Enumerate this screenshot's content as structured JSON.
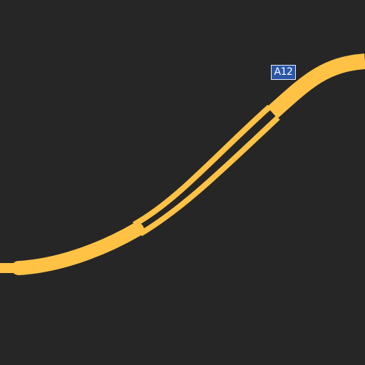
{
  "map": {
    "background_color": "#262626",
    "road_color": "#ffc245",
    "road_class": "motorway",
    "road_shield": {
      "label": "A12",
      "fill_color": "#2a56a8",
      "border_color": "#e6ecf5",
      "text_color": "#ffffff"
    },
    "features": [
      "motorway-main-carriageway",
      "dual-carriageway-section",
      "slip-road-west",
      "road-shield"
    ]
  }
}
